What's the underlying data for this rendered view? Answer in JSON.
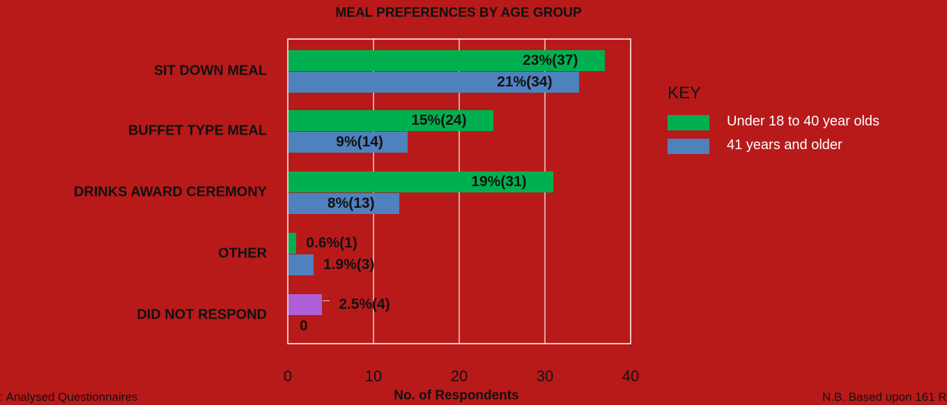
{
  "chart_data": {
    "type": "bar",
    "orientation": "horizontal",
    "title": "MEAL PREFERENCES BY AGE GROUP",
    "xlabel": "No. of Respondents",
    "xlim": [
      0,
      40
    ],
    "xticks": [
      "0",
      "10",
      "20",
      "30",
      "40"
    ],
    "categories": [
      "SIT DOWN MEAL",
      "BUFFET TYPE MEAL",
      "DRINKS AWARD CEREMONY",
      "OTHER",
      "DID NOT RESPOND"
    ],
    "series": [
      {
        "name": "Under 18 to 40 year olds",
        "color": "#00b050",
        "values": [
          37,
          24,
          31,
          1,
          4
        ],
        "labels": [
          "23%(37)",
          "15%(24)",
          "19%(31)",
          "0.6%(1)",
          "2.5%(4)"
        ]
      },
      {
        "name": "41 years and older",
        "color": "#4f81bd",
        "values": [
          34,
          14,
          13,
          3,
          0
        ],
        "labels": [
          "21%(34)",
          "9%(14)",
          "8%(13)",
          "1.9%(3)",
          "0"
        ]
      }
    ],
    "special_colors": {
      "did_not_respond": "#b05fd8"
    },
    "grid": true,
    "legend_title": "KEY",
    "legend_position": "right"
  },
  "footnotes": {
    "left": ": Analysed Questionnaires",
    "right": "N.B. Based upon 161 R"
  },
  "colors": {
    "background": "#b81a1a",
    "grid": "#ffffff"
  }
}
